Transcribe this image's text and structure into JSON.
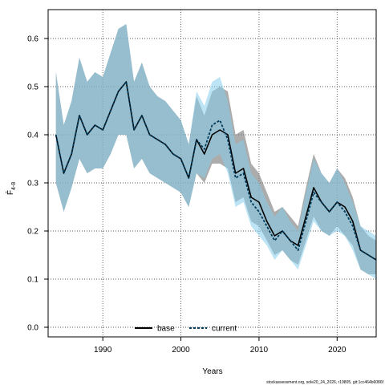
{
  "chart_data": {
    "type": "line",
    "xlabel": "Years",
    "ylabel_main": "F̄",
    "ylabel_sub": "4-8",
    "xlim": [
      1983,
      2025
    ],
    "ylim": [
      -0.02,
      0.66
    ],
    "x_ticks": [
      1990,
      2000,
      2010,
      2020
    ],
    "y_ticks": [
      0.0,
      0.1,
      0.2,
      0.3,
      0.4,
      0.5,
      0.6
    ],
    "y_tick_labels": [
      "0.0",
      "0.1",
      "0.2",
      "0.3",
      "0.4",
      "0.5",
      "0.6"
    ],
    "grid": true,
    "legend_position": "bottom-center",
    "footnote": "stockassessment.org, sole20_24_2026, r19805, git:1cc464b6086f",
    "x": [
      1984,
      1985,
      1986,
      1987,
      1988,
      1989,
      1990,
      1991,
      1992,
      1993,
      1994,
      1995,
      1996,
      1997,
      1998,
      1999,
      2000,
      2001,
      2002,
      2003,
      2004,
      2005,
      2006,
      2007,
      2008,
      2009,
      2010,
      2011,
      2012,
      2013,
      2014,
      2015,
      2016,
      2017,
      2018,
      2019,
      2020,
      2021,
      2022,
      2023,
      2024,
      2025
    ],
    "series": [
      {
        "name": "base",
        "color": "#000000",
        "band_color": "#808080",
        "values": [
          0.4,
          0.32,
          0.36,
          0.44,
          0.4,
          0.42,
          0.41,
          0.45,
          0.49,
          0.51,
          0.41,
          0.44,
          0.4,
          0.39,
          0.38,
          0.36,
          0.35,
          0.31,
          0.39,
          0.36,
          0.4,
          0.41,
          0.4,
          0.32,
          0.33,
          0.27,
          0.26,
          0.22,
          0.19,
          0.2,
          0.18,
          0.17,
          0.23,
          0.29,
          0.26,
          0.24,
          0.26,
          0.25,
          0.22,
          0.16,
          0.15,
          0.14
        ],
        "lower": [
          0.3,
          0.24,
          0.29,
          0.35,
          0.32,
          0.33,
          0.33,
          0.36,
          0.4,
          0.4,
          0.33,
          0.35,
          0.32,
          0.31,
          0.3,
          0.29,
          0.28,
          0.25,
          0.32,
          0.3,
          0.34,
          0.34,
          0.33,
          0.26,
          0.27,
          0.22,
          0.21,
          0.18,
          0.15,
          0.16,
          0.14,
          0.13,
          0.18,
          0.23,
          0.2,
          0.19,
          0.21,
          0.19,
          0.17,
          0.12,
          0.11,
          0.11
        ],
        "upper": [
          0.53,
          0.42,
          0.47,
          0.56,
          0.51,
          0.53,
          0.52,
          0.57,
          0.62,
          0.63,
          0.51,
          0.55,
          0.5,
          0.48,
          0.47,
          0.45,
          0.43,
          0.38,
          0.48,
          0.44,
          0.49,
          0.5,
          0.49,
          0.4,
          0.41,
          0.34,
          0.32,
          0.28,
          0.24,
          0.25,
          0.23,
          0.21,
          0.29,
          0.36,
          0.32,
          0.3,
          0.33,
          0.31,
          0.27,
          0.21,
          0.19,
          0.18
        ]
      },
      {
        "name": "current",
        "color": "#003a5a",
        "band_color": "#87ceeb",
        "values": [
          0.4,
          0.32,
          0.36,
          0.44,
          0.4,
          0.42,
          0.41,
          0.45,
          0.49,
          0.51,
          0.41,
          0.44,
          0.4,
          0.39,
          0.38,
          0.36,
          0.35,
          0.31,
          0.39,
          0.37,
          0.42,
          0.43,
          0.39,
          0.31,
          0.32,
          0.26,
          0.24,
          0.21,
          0.18,
          0.2,
          0.18,
          0.16,
          0.22,
          0.28,
          0.26,
          0.24,
          0.26,
          0.24,
          0.21,
          0.16,
          0.15,
          0.14
        ],
        "lower": [
          0.3,
          0.24,
          0.29,
          0.35,
          0.32,
          0.33,
          0.33,
          0.36,
          0.4,
          0.4,
          0.33,
          0.35,
          0.32,
          0.31,
          0.3,
          0.29,
          0.28,
          0.25,
          0.32,
          0.31,
          0.35,
          0.36,
          0.32,
          0.25,
          0.26,
          0.21,
          0.19,
          0.17,
          0.14,
          0.16,
          0.14,
          0.12,
          0.17,
          0.22,
          0.2,
          0.19,
          0.2,
          0.19,
          0.16,
          0.12,
          0.11,
          0.1
        ],
        "upper": [
          0.53,
          0.42,
          0.47,
          0.56,
          0.51,
          0.53,
          0.52,
          0.57,
          0.62,
          0.63,
          0.51,
          0.55,
          0.5,
          0.48,
          0.47,
          0.45,
          0.43,
          0.38,
          0.49,
          0.46,
          0.51,
          0.52,
          0.47,
          0.38,
          0.39,
          0.32,
          0.3,
          0.26,
          0.23,
          0.25,
          0.22,
          0.2,
          0.28,
          0.35,
          0.32,
          0.3,
          0.33,
          0.3,
          0.26,
          0.21,
          0.2,
          0.19
        ]
      }
    ]
  }
}
